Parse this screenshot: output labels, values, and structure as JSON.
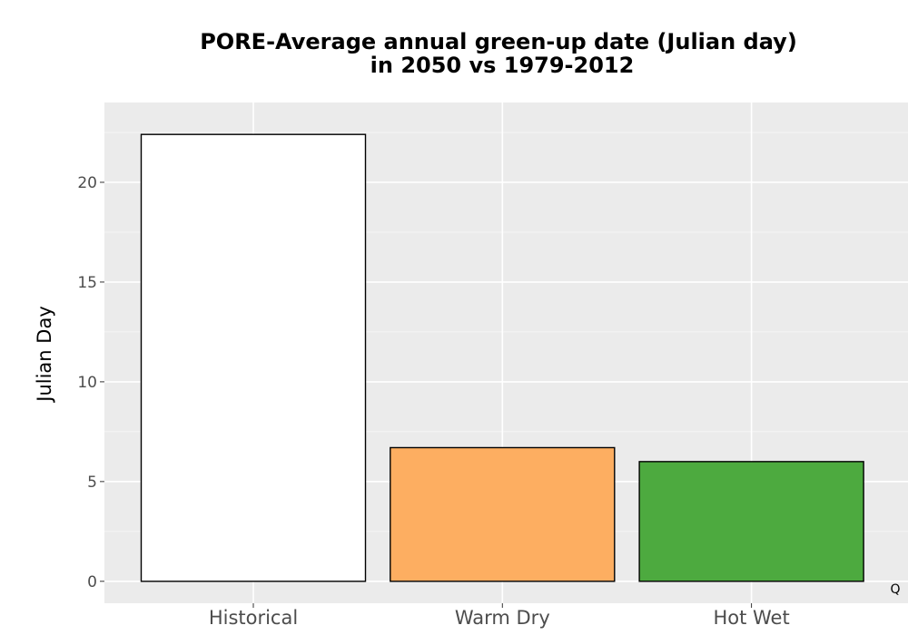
{
  "chart_data": {
    "type": "bar",
    "title": "PORE-Average annual green-up date (Julian day)",
    "subtitle": "in 2050 vs 1979-2012",
    "xlabel": "",
    "ylabel": "Julian Day",
    "categories": [
      "Historical",
      "Warm Dry",
      "Hot Wet"
    ],
    "values": [
      22.4,
      6.7,
      6.0
    ],
    "colors": [
      "#ffffff",
      "#fdae61",
      "#4daa3f"
    ],
    "ylim": [
      -1.1,
      24.0
    ],
    "yticks": [
      0,
      5,
      10,
      15,
      20
    ],
    "yticklabels": [
      "0",
      "5",
      "10",
      "15",
      "20"
    ],
    "grid": true,
    "legend": "none",
    "background": "#ebebeb",
    "corner_label": "Q"
  }
}
